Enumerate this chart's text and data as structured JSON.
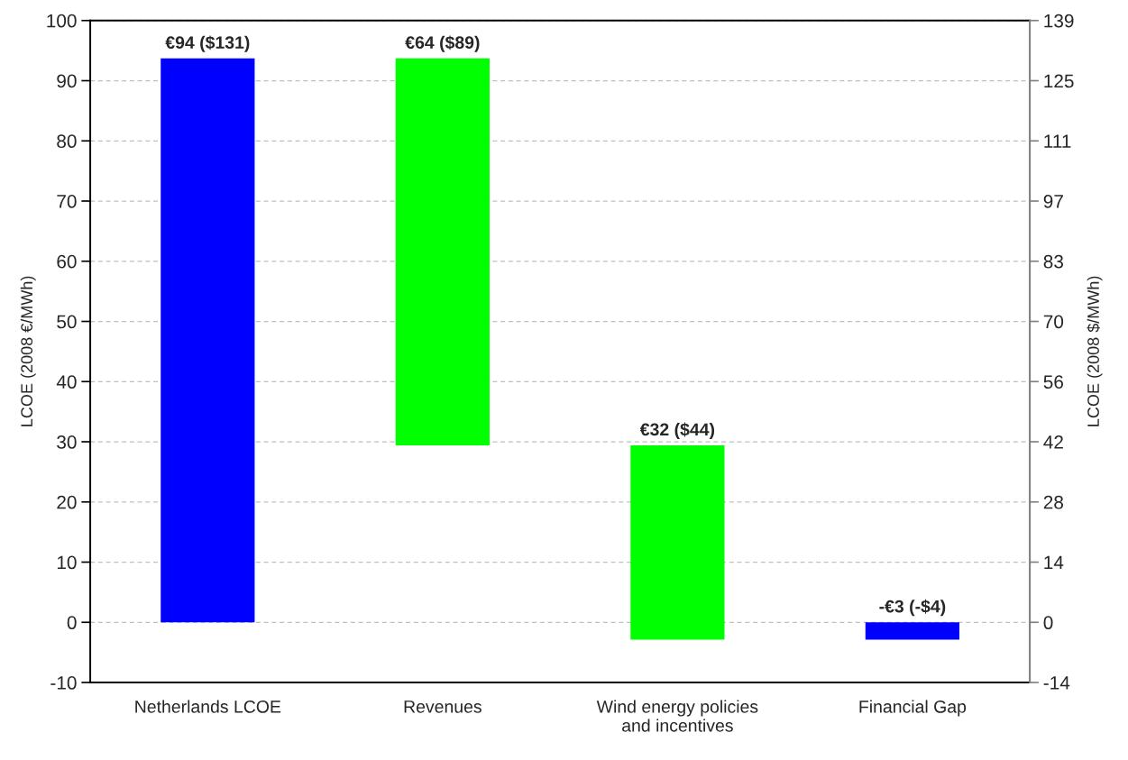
{
  "chart_data": {
    "type": "bar",
    "categories": [
      "Netherlands LCOE",
      "Revenues",
      "Wind energy policies\nand incentives",
      "Financial Gap"
    ],
    "values": [
      93.7,
      64.3,
      32.3,
      -2.9
    ],
    "base": [
      0,
      29.4,
      -2.9,
      0
    ],
    "colors": [
      "#0000ff",
      "#00ff00",
      "#00ff00",
      "#0000ff"
    ],
    "value_labels": [
      "€94 ($131)",
      "€64 ($89)",
      "€32 ($44)",
      "-€3 (-$4)"
    ],
    "ylabel": "LCOE (2008 €/MWh)",
    "y2label": "LCOE (2008 $/MWh)",
    "ylim": [
      -10,
      100
    ],
    "yticks": [
      -10,
      0,
      10,
      20,
      30,
      40,
      50,
      60,
      70,
      80,
      90,
      100
    ],
    "y2lim": [
      -13.9,
      139
    ],
    "y2ticks": [
      {
        "value": -13.9,
        "label": "-14"
      },
      0,
      {
        "value": 13.9,
        "label": "14"
      },
      {
        "value": 27.8,
        "label": "28"
      },
      {
        "value": 41.7,
        "label": "42"
      },
      {
        "value": 55.6,
        "label": "56"
      },
      {
        "value": 69.5,
        "label": "70"
      },
      {
        "value": 83.4,
        "label": "83"
      },
      {
        "value": 97.3,
        "label": "97"
      },
      {
        "value": 111.2,
        "label": "111"
      },
      {
        "value": 125.1,
        "label": "125"
      },
      139
    ],
    "grid": "y"
  }
}
